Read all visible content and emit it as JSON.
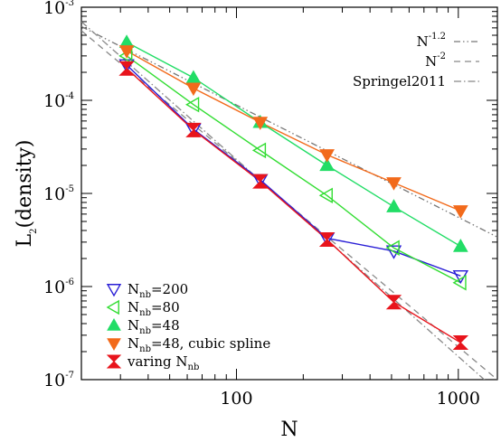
{
  "chart_data": {
    "type": "scatter",
    "title": "",
    "xlabel": "N",
    "ylabel_main": "L",
    "ylabel_sub": "2",
    "ylabel_rest": "(density)",
    "xscale": "log",
    "yscale": "log",
    "xlim": [
      20,
      1500
    ],
    "ylim": [
      1e-07,
      0.001
    ],
    "x_ticks": [
      {
        "value": 100,
        "label": "100"
      },
      {
        "value": 1000,
        "label": "1000"
      }
    ],
    "y_ticks": [
      {
        "value": 1e-07,
        "base": "10",
        "exp": "-7"
      },
      {
        "value": 1e-06,
        "base": "10",
        "exp": "-6"
      },
      {
        "value": 1e-05,
        "base": "10",
        "exp": "-5"
      },
      {
        "value": 0.0001,
        "base": "10",
        "exp": "-4"
      },
      {
        "value": 0.001,
        "base": "10",
        "exp": "-3"
      }
    ],
    "series": [
      {
        "name_main": "N",
        "name_sub": "nb",
        "name_rest": "=200",
        "marker": "triangle-down-open",
        "color": "#2a1fd6",
        "x": [
          32,
          64,
          128,
          256,
          512,
          1024
        ],
        "y": [
          0.00024,
          4.9e-05,
          1.4e-05,
          3.3e-06,
          2.4e-06,
          1.3e-06
        ]
      },
      {
        "name_main": "N",
        "name_sub": "nb",
        "name_rest": "=80",
        "marker": "triangle-left-open",
        "color": "#33dd33",
        "x": [
          32,
          64,
          128,
          256,
          512,
          1024
        ],
        "y": [
          0.0003,
          9e-05,
          2.9e-05,
          9.5e-06,
          2.6e-06,
          1.1e-06
        ]
      },
      {
        "name_main": "N",
        "name_sub": "nb",
        "name_rest": "=48",
        "marker": "triangle-up-filled",
        "color": "#22dd66",
        "x": [
          32,
          64,
          128,
          256,
          512,
          1024
        ],
        "y": [
          0.00042,
          0.000175,
          5.8e-05,
          2e-05,
          7.2e-06,
          2.7e-06
        ]
      },
      {
        "name_main": "N",
        "name_sub": "nb",
        "name_rest": "=48, cubic spline",
        "marker": "triangle-down-filled",
        "color": "#f26a1b",
        "x": [
          32,
          64,
          128,
          256,
          512,
          1024
        ],
        "y": [
          0.00034,
          0.000135,
          5.8e-05,
          2.6e-05,
          1.3e-05,
          6.5e-06
        ]
      },
      {
        "name_main": "varing N",
        "name_sub": "nb",
        "name_rest": "",
        "marker": "hourglass-filled",
        "color": "#e8141c",
        "x": [
          32,
          64,
          128,
          256,
          512,
          1024
        ],
        "y": [
          0.00022,
          4.8e-05,
          1.35e-05,
          3.2e-06,
          6.8e-07,
          2.5e-07
        ]
      }
    ],
    "reference_lines": [
      {
        "label_main": "N",
        "label_sup": "-1.2",
        "style": "dot-dot-dash",
        "color": "#777777",
        "x": [
          20,
          1500
        ],
        "y": [
          0.00062,
          3.4e-06
        ]
      },
      {
        "label_main": "N",
        "label_sup": "-2",
        "style": "dashed",
        "color": "#888888",
        "x": [
          20,
          1500
        ],
        "y": [
          0.00056,
          1e-07
        ]
      },
      {
        "label_main": "Springel2011",
        "label_sup": "",
        "style": "dash-dot",
        "color": "#888888",
        "x": [
          20,
          1500
        ],
        "y": [
          0.0007,
          7.5e-08
        ]
      }
    ],
    "legend_position": "bottom-left",
    "reference_legend_position": "top-right",
    "grid": false
  }
}
